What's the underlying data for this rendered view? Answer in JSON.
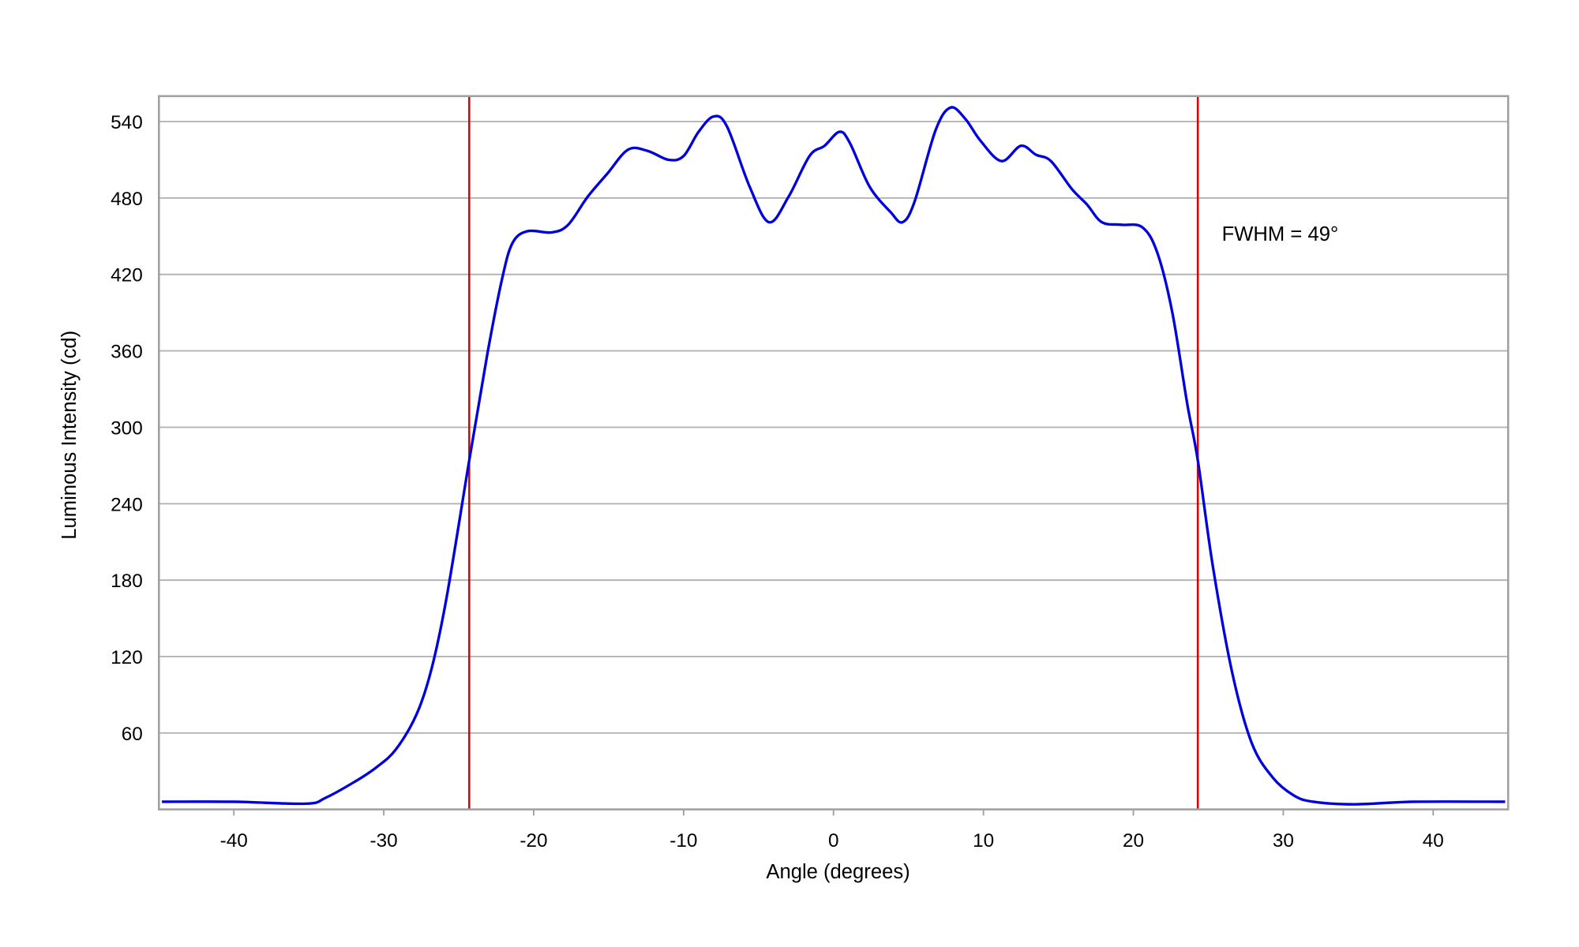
{
  "chart_data": {
    "type": "line",
    "title": "",
    "xlabel": "Angle (degrees)",
    "ylabel": "Luminous Intensity (cd)",
    "xlim": [
      -45,
      45
    ],
    "ylim": [
      0,
      560
    ],
    "xticks": [
      -40,
      -30,
      -20,
      -10,
      0,
      10,
      20,
      30,
      40
    ],
    "yticks": [
      60,
      120,
      180,
      240,
      300,
      360,
      420,
      480,
      540
    ],
    "grid": "horizontal",
    "legend": "none",
    "series": [
      {
        "color": "#0000dd",
        "x": [
          -44.8,
          -40,
          -35.2,
          -33.9,
          -31.9,
          -30.5,
          -29.2,
          -27.8,
          -26.8,
          -25.8,
          -24.3,
          -23.1,
          -22.1,
          -21.4,
          -20.4,
          -18.8,
          -17.7,
          -16.4,
          -15.1,
          -13.7,
          -12.4,
          -11.0,
          -10.0,
          -9.0,
          -8.0,
          -7.1,
          -5.6,
          -4.3,
          -3.0,
          -1.6,
          -0.6,
          0.4,
          1.1,
          2.4,
          3.8,
          4.6,
          5.4,
          6.8,
          7.8,
          8.8,
          9.8,
          11.2,
          12.5,
          13.5,
          14.5,
          15.9,
          16.9,
          17.9,
          19.2,
          20.6,
          21.6,
          22.6,
          23.6,
          24.3,
          25.3,
          26.6,
          27.9,
          29.3,
          30.7,
          32.0,
          34.7,
          38.7,
          44.8
        ],
        "y": [
          6,
          6,
          4.5,
          9,
          22,
          33,
          47,
          75,
          111,
          167,
          274,
          357,
          417,
          445,
          454,
          453,
          459,
          481,
          499,
          518,
          517,
          510,
          513,
          532,
          544,
          536,
          489,
          461,
          481,
          513,
          521,
          532,
          523,
          489,
          469,
          461,
          477,
          533,
          551,
          542,
          525,
          509,
          521,
          514,
          509,
          487,
          475,
          461,
          459,
          457,
          437,
          390,
          318,
          274,
          191,
          107,
          52,
          25,
          11,
          6,
          4,
          6,
          6
        ]
      }
    ],
    "vertical_lines": [
      {
        "x": -24.3,
        "color": "#dd0000"
      },
      {
        "x": 24.3,
        "color": "#dd0000"
      }
    ],
    "annotations": [
      {
        "text": "FWHM = 49°",
        "x": 25.9,
        "y": 452
      }
    ]
  }
}
